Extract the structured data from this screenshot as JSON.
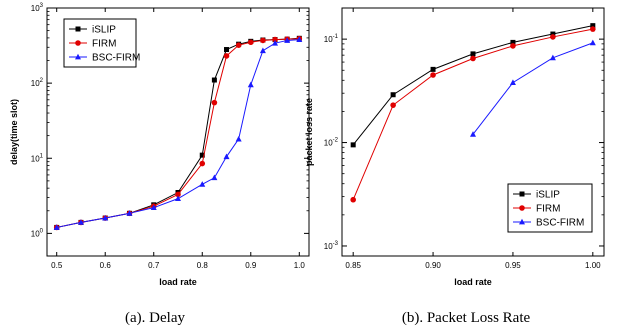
{
  "figure": {
    "captions": [
      "(a). Delay",
      "(b). Packet Loss Rate"
    ]
  },
  "chart_data": [
    {
      "type": "line",
      "title": "",
      "xlabel": "load rate",
      "ylabel": "delay(time slot)",
      "xlim": [
        0.48,
        1.02
      ],
      "ylim": [
        0.5,
        1000
      ],
      "y_scale": "log",
      "x_ticks": [
        "0.5",
        "0.6",
        "0.7",
        "0.8",
        "0.9",
        "1.0"
      ],
      "y_tick_values": [
        1,
        10,
        100,
        1000
      ],
      "y_tick_labels": [
        "10^0",
        "10^1",
        "10^2",
        "10^3"
      ],
      "legend_position": "top-left",
      "x": [
        0.5,
        0.55,
        0.6,
        0.65,
        0.7,
        0.75,
        0.8,
        0.825,
        0.85,
        0.875,
        0.9,
        0.925,
        0.95,
        0.975,
        1.0
      ],
      "series": [
        {
          "name": "iSLIP",
          "color": "#000000",
          "marker": "square",
          "values": [
            1.2,
            1.4,
            1.6,
            1.85,
            2.4,
            3.5,
            11,
            110,
            280,
            330,
            360,
            375,
            380,
            385,
            395
          ]
        },
        {
          "name": "FIRM",
          "color": "#e00000",
          "marker": "circle",
          "values": [
            1.2,
            1.4,
            1.6,
            1.85,
            2.3,
            3.3,
            8.5,
            55,
            230,
            320,
            350,
            370,
            380,
            385,
            390
          ]
        },
        {
          "name": "BSC-FIRM",
          "color": "#1a1aff",
          "marker": "triangle",
          "values": [
            1.2,
            1.4,
            1.6,
            1.85,
            2.2,
            2.9,
            4.5,
            5.5,
            10.5,
            18,
            95,
            270,
            340,
            370,
            380
          ]
        }
      ]
    },
    {
      "type": "line",
      "title": "",
      "xlabel": "load rate",
      "ylabel": "packet loss rate",
      "xlim": [
        0.843,
        1.007
      ],
      "ylim": [
        0.0008,
        0.2
      ],
      "y_scale": "log",
      "x_ticks": [
        "0.85",
        "0.90",
        "0.95",
        "1.00"
      ],
      "y_tick_values": [
        0.001,
        0.01,
        0.1
      ],
      "y_tick_labels": [
        "10^-3",
        "10^-2",
        "10^-1"
      ],
      "legend_position": "bottom-right",
      "series": [
        {
          "name": "iSLIP",
          "color": "#000000",
          "marker": "square",
          "x": [
            0.85,
            0.875,
            0.9,
            0.925,
            0.95,
            0.975,
            1.0
          ],
          "values": [
            0.0095,
            0.029,
            0.051,
            0.072,
            0.093,
            0.112,
            0.135
          ]
        },
        {
          "name": "FIRM",
          "color": "#e00000",
          "marker": "circle",
          "x": [
            0.85,
            0.875,
            0.9,
            0.925,
            0.95,
            0.975,
            1.0
          ],
          "values": [
            0.0028,
            0.023,
            0.045,
            0.065,
            0.086,
            0.105,
            0.125
          ]
        },
        {
          "name": "BSC-FIRM",
          "color": "#1a1aff",
          "marker": "triangle",
          "x": [
            0.925,
            0.95,
            0.975,
            1.0
          ],
          "values": [
            0.012,
            0.038,
            0.066,
            0.092
          ]
        }
      ]
    }
  ]
}
